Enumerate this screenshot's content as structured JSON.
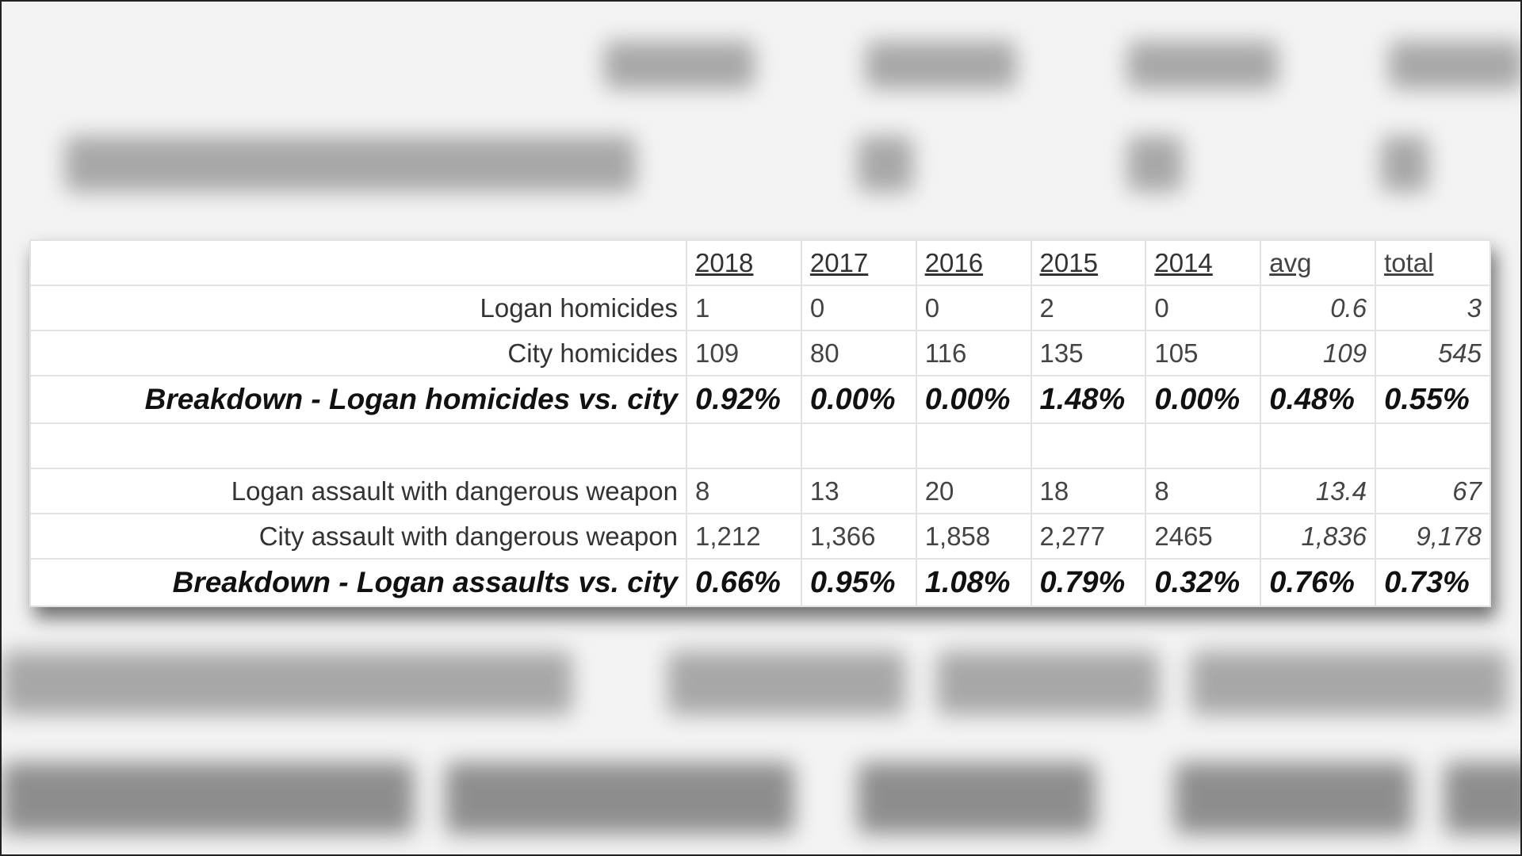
{
  "table": {
    "header": [
      "2018",
      "2017",
      "2016",
      "2015",
      "2014",
      "avg",
      "total"
    ],
    "groups": [
      [
        {
          "label": "Logan homicides",
          "cells": [
            "1",
            "0",
            "0",
            "2",
            "0",
            "0.6",
            "3"
          ]
        },
        {
          "label": "City homicides",
          "cells": [
            "109",
            "80",
            "116",
            "135",
            "105",
            "109",
            "545"
          ]
        },
        {
          "label": "Breakdown - Logan homicides vs. city",
          "cells": [
            "0.92%",
            "0.00%",
            "0.00%",
            "1.48%",
            "0.00%",
            "0.48%",
            "0.55%"
          ]
        }
      ],
      [
        {
          "label": "Logan assault with dangerous weapon",
          "cells": [
            "8",
            "13",
            "20",
            "18",
            "8",
            "13.4",
            "67"
          ]
        },
        {
          "label": "City assault with dangerous weapon",
          "cells": [
            "1,212",
            "1,366",
            "1,858",
            "2,277",
            "2465",
            "1,836",
            "9,178"
          ]
        },
        {
          "label": "Breakdown - Logan assaults vs. city",
          "cells": [
            "0.66%",
            "0.95%",
            "1.08%",
            "0.79%",
            "0.32%",
            "0.76%",
            "0.73%"
          ]
        }
      ]
    ]
  }
}
